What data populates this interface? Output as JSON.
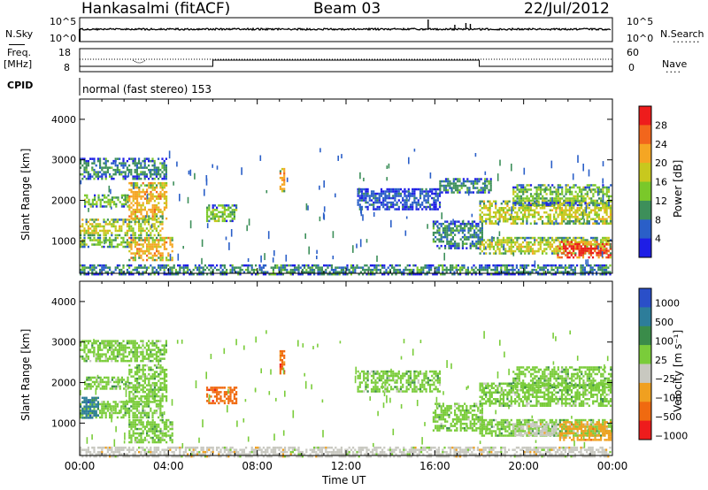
{
  "header": {
    "station": "Hankasalmi (fitACF)",
    "beam": "Beam 03",
    "date": "22/Jul/2012"
  },
  "top_panels": {
    "nsky_label": "N.Sky",
    "nsearch_label": "N.Search",
    "nsky_ticks": [
      "10^5",
      "10^0"
    ],
    "nsearch_ticks": [
      "10^5",
      "10^0"
    ],
    "freq_label_1": "Freq.",
    "freq_label_2": "[MHz]",
    "freq_ticks": [
      "18",
      "8"
    ],
    "nave_label": "Nave",
    "nave_ticks": [
      "60",
      "0"
    ],
    "cpid_label": "CPID",
    "cpid_text": "normal (fast stereo) 153"
  },
  "chart_data": [
    {
      "type": "heatmap",
      "name": "power",
      "ylabel": "Slant Range [km]",
      "xlabel": "",
      "xlim": [
        0,
        24
      ],
      "ylim": [
        200,
        4500
      ],
      "yticks": [
        "1000",
        "2000",
        "3000",
        "4000"
      ],
      "colorbar": {
        "label": "Power [dB]",
        "ticks": [
          "28",
          "24",
          "20",
          "16",
          "12",
          "8",
          "4"
        ],
        "colors": [
          "#ee1c1c",
          "#f2661c",
          "#f5a623",
          "#c8c81e",
          "#7ac82a",
          "#3d8f5a",
          "#2a5fc8",
          "#1e1ee6"
        ]
      },
      "bands": [
        {
          "t0": 0.0,
          "t1": 3.9,
          "r0": 2550,
          "r1": 3050,
          "level": 2
        },
        {
          "t0": 0.2,
          "t1": 2.2,
          "r0": 1850,
          "r1": 2150,
          "level": 3
        },
        {
          "t0": 0.0,
          "t1": 3.7,
          "r0": 1150,
          "r1": 1550,
          "level": 4
        },
        {
          "t0": 0.0,
          "t1": 2.3,
          "r0": 850,
          "r1": 1100,
          "level": 3
        },
        {
          "t0": 2.2,
          "t1": 4.2,
          "r0": 550,
          "r1": 1100,
          "level": 5
        },
        {
          "t0": 2.2,
          "t1": 3.9,
          "r0": 1550,
          "r1": 2450,
          "level": 5
        },
        {
          "t0": 5.7,
          "t1": 7.1,
          "r0": 1500,
          "r1": 1900,
          "level": 3
        },
        {
          "t0": 9.0,
          "t1": 9.2,
          "r0": 2200,
          "r1": 2800,
          "level": 5
        },
        {
          "t0": 12.5,
          "t1": 16.2,
          "r0": 1800,
          "r1": 2300,
          "level": 1
        },
        {
          "t0": 15.9,
          "t1": 18.1,
          "r0": 800,
          "r1": 1500,
          "level": 2
        },
        {
          "t0": 16.2,
          "t1": 18.5,
          "r0": 2200,
          "r1": 2550,
          "level": 2
        },
        {
          "t0": 18.0,
          "t1": 23.9,
          "r0": 1450,
          "r1": 2000,
          "level": 4
        },
        {
          "t0": 18.0,
          "t1": 23.9,
          "r0": 700,
          "r1": 1100,
          "level": 4
        },
        {
          "t0": 21.5,
          "t1": 23.9,
          "r0": 600,
          "r1": 1000,
          "level": 7
        },
        {
          "t0": 19.5,
          "t1": 23.9,
          "r0": 1900,
          "r1": 2400,
          "level": 3
        },
        {
          "t0": 0.0,
          "t1": 23.9,
          "r0": 200,
          "r1": 420,
          "level": 2
        }
      ]
    },
    {
      "type": "heatmap",
      "name": "velocity",
      "ylabel": "Slant Range [km]",
      "xlabel": "Time UT",
      "xlim": [
        0,
        24
      ],
      "ylim": [
        200,
        4500
      ],
      "yticks": [
        "1000",
        "2000",
        "3000",
        "4000"
      ],
      "xticks": [
        "00:00",
        "04:00",
        "08:00",
        "12:00",
        "16:00",
        "20:00",
        "00:00"
      ],
      "colorbar": {
        "label": "Velocity [m s⁻¹]",
        "ticks": [
          "1000",
          "500",
          "100",
          "25",
          "−25",
          "−100",
          "−500",
          "−1000"
        ],
        "colors": [
          "#2a4fc8",
          "#2d7d9a",
          "#3a8c4a",
          "#7acc3a",
          "#c8c8c0",
          "#f0a020",
          "#f06a10",
          "#ee1c1c"
        ]
      },
      "bands": [
        {
          "t0": 0.0,
          "t1": 3.9,
          "r0": 2550,
          "r1": 3050,
          "level": 4
        },
        {
          "t0": 0.2,
          "t1": 2.2,
          "r0": 1850,
          "r1": 2150,
          "level": 4
        },
        {
          "t0": 0.0,
          "t1": 3.7,
          "r0": 1150,
          "r1": 1550,
          "level": 4
        },
        {
          "t0": 0.0,
          "t1": 0.8,
          "r0": 1150,
          "r1": 1650,
          "level": 6
        },
        {
          "t0": 2.2,
          "t1": 4.2,
          "r0": 550,
          "r1": 1100,
          "level": 4
        },
        {
          "t0": 2.2,
          "t1": 3.9,
          "r0": 1550,
          "r1": 2450,
          "level": 4
        },
        {
          "t0": 5.7,
          "t1": 7.1,
          "r0": 1500,
          "r1": 1900,
          "level": 1
        },
        {
          "t0": 9.0,
          "t1": 9.2,
          "r0": 2200,
          "r1": 2800,
          "level": 1
        },
        {
          "t0": 12.5,
          "t1": 16.2,
          "r0": 1800,
          "r1": 2300,
          "level": 4
        },
        {
          "t0": 15.9,
          "t1": 18.1,
          "r0": 800,
          "r1": 1500,
          "level": 4
        },
        {
          "t0": 18.0,
          "t1": 23.9,
          "r0": 1450,
          "r1": 2000,
          "level": 4
        },
        {
          "t0": 18.0,
          "t1": 23.9,
          "r0": 700,
          "r1": 1100,
          "level": 4
        },
        {
          "t0": 21.6,
          "t1": 23.9,
          "r0": 600,
          "r1": 1050,
          "level": 2
        },
        {
          "t0": 19.5,
          "t1": 21.5,
          "r0": 700,
          "r1": 1000,
          "level": 3
        },
        {
          "t0": 19.5,
          "t1": 23.9,
          "r0": 1900,
          "r1": 2400,
          "level": 4
        },
        {
          "t0": 0.0,
          "t1": 23.9,
          "r0": 200,
          "r1": 420,
          "level": 3
        }
      ]
    }
  ]
}
